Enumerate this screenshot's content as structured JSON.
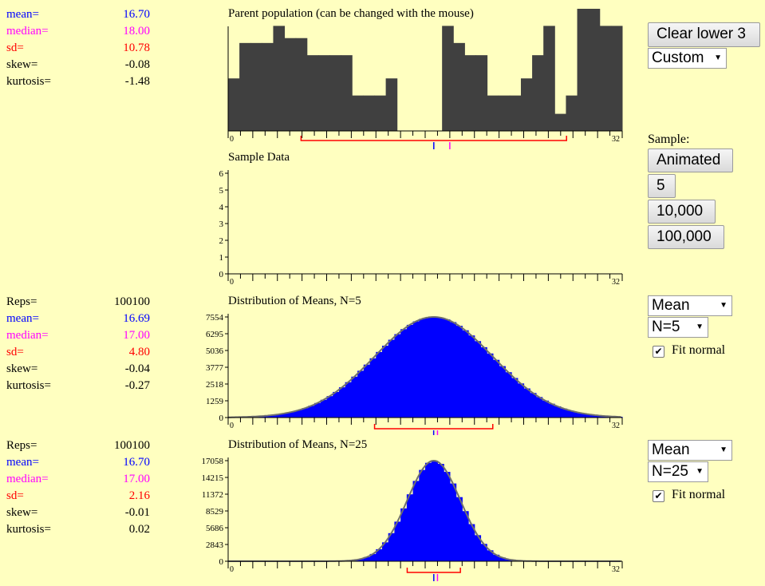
{
  "parent": {
    "title": "Parent population (can be changed with the mouse)",
    "stats": [
      {
        "label": "mean=",
        "value": "16.70",
        "color": "#0000FF"
      },
      {
        "label": "median=",
        "value": "18.00",
        "color": "#FF00FF"
      },
      {
        "label": "sd=",
        "value": "10.78",
        "color": "#FF0000"
      },
      {
        "label": "skew=",
        "value": "-0.08",
        "color": "#000000"
      },
      {
        "label": "kurtosis=",
        "value": "-1.48",
        "color": "#000000"
      }
    ],
    "x_min_label": "0",
    "x_max_label": "32",
    "bars": [
      0.43,
      0.72,
      0.72,
      0.72,
      0.86,
      0.76,
      0.76,
      0.62,
      0.62,
      0.62,
      0.62,
      0.29,
      0.29,
      0.29,
      0.43,
      0,
      0,
      0,
      0,
      0.86,
      0.72,
      0.62,
      0.62,
      0.29,
      0.29,
      0.29,
      0.43,
      0.62,
      0.86,
      0.14,
      0.29,
      1.0,
      1.0,
      0.86,
      0.86
    ],
    "mean": 16.7,
    "median": 18.0,
    "sd": 10.78
  },
  "sample": {
    "title": "Sample Data",
    "y_ticks": [
      "0",
      "1",
      "2",
      "3",
      "4",
      "5",
      "6"
    ],
    "x_min_label": "0",
    "x_max_label": "32"
  },
  "dist5": {
    "title": "Distribution of Means, N=5",
    "stats": [
      {
        "label": "Reps=",
        "value": "100100",
        "color": "#000000"
      },
      {
        "label": "mean=",
        "value": "16.69",
        "color": "#0000FF"
      },
      {
        "label": "median=",
        "value": "17.00",
        "color": "#FF00FF"
      },
      {
        "label": "sd=",
        "value": "4.80",
        "color": "#FF0000"
      },
      {
        "label": "skew=",
        "value": "-0.04",
        "color": "#000000"
      },
      {
        "label": "kurtosis=",
        "value": "-0.27",
        "color": "#000000"
      }
    ],
    "y_ticks": [
      "0",
      "1259",
      "2518",
      "3777",
      "5036",
      "6295",
      "7554"
    ],
    "y_max": 7554,
    "x_min_label": "0",
    "x_max_label": "32",
    "mean": 16.69,
    "median": 17.0,
    "sd": 4.8
  },
  "dist25": {
    "title": "Distribution of Means, N=25",
    "stats": [
      {
        "label": "Reps=",
        "value": "100100",
        "color": "#000000"
      },
      {
        "label": "mean=",
        "value": "16.70",
        "color": "#0000FF"
      },
      {
        "label": "median=",
        "value": "17.00",
        "color": "#FF00FF"
      },
      {
        "label": "sd=",
        "value": "2.16",
        "color": "#FF0000"
      },
      {
        "label": "skew=",
        "value": "-0.01",
        "color": "#000000"
      },
      {
        "label": "kurtosis=",
        "value": "0.02",
        "color": "#000000"
      }
    ],
    "y_ticks": [
      "0",
      "2843",
      "5686",
      "8529",
      "11372",
      "14215",
      "17058"
    ],
    "y_max": 17058,
    "x_min_label": "0",
    "x_max_label": "32",
    "mean": 16.7,
    "median": 17.0,
    "sd": 2.16
  },
  "controls": {
    "clear_button": "Clear lower 3",
    "dist_select": "Custom",
    "sample_label": "Sample:",
    "animated": "Animated",
    "btn5": "5",
    "btn10000": "10,000",
    "btn100000": "100,000",
    "stat_select_1": "Mean",
    "n_select_1": "N=5",
    "fit_normal_1": "Fit normal",
    "stat_select_2": "Mean",
    "n_select_2": "N=25",
    "fit_normal_2": "Fit normal"
  },
  "colors": {
    "background": "#FFFFC0",
    "parent_bar": "#404040",
    "dist_bar": "#0000FF",
    "fit_curve": "#707070",
    "mean": "#0000FF",
    "median": "#FF00FF",
    "sd": "#FF0000"
  }
}
